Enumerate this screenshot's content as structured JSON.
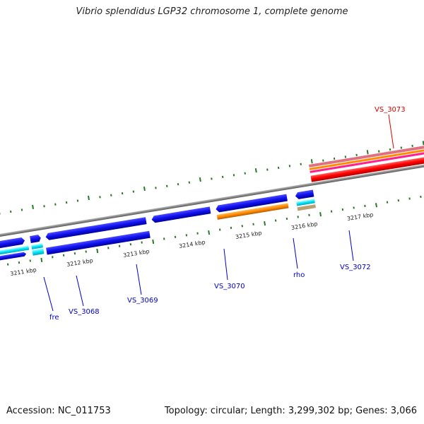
{
  "title": "Vibrio splendidus LGP32 chromosome 1, complete genome",
  "footer": {
    "accession": "Accession: NC_011753",
    "stats": "Topology: circular; Length: 3,299,302 bp; Genes: 3,066"
  },
  "kbp_labels": [
    "3211 kbp",
    "3212 kbp",
    "3213 kbp",
    "3214 kbp",
    "3215 kbp",
    "3216 kbp",
    "3217 kbp"
  ],
  "gene_labels": [
    {
      "name": "VS_3073",
      "color": "#e00000"
    },
    {
      "name": "fre",
      "color": "#0000cc"
    },
    {
      "name": "VS_3068",
      "color": "#0000cc"
    },
    {
      "name": "VS_3069",
      "color": "#0000cc"
    },
    {
      "name": "VS_3070",
      "color": "#0000cc"
    },
    {
      "name": "rho",
      "color": "#0000cc"
    },
    {
      "name": "VS_3072",
      "color": "#0000cc"
    }
  ],
  "colors": {
    "backbone": "#888888",
    "ticks": "#2a7a2a",
    "cds": "#1010ee",
    "gene": "#00e0f0",
    "rho": "#ff8c00",
    "rna": "#ff0000"
  }
}
